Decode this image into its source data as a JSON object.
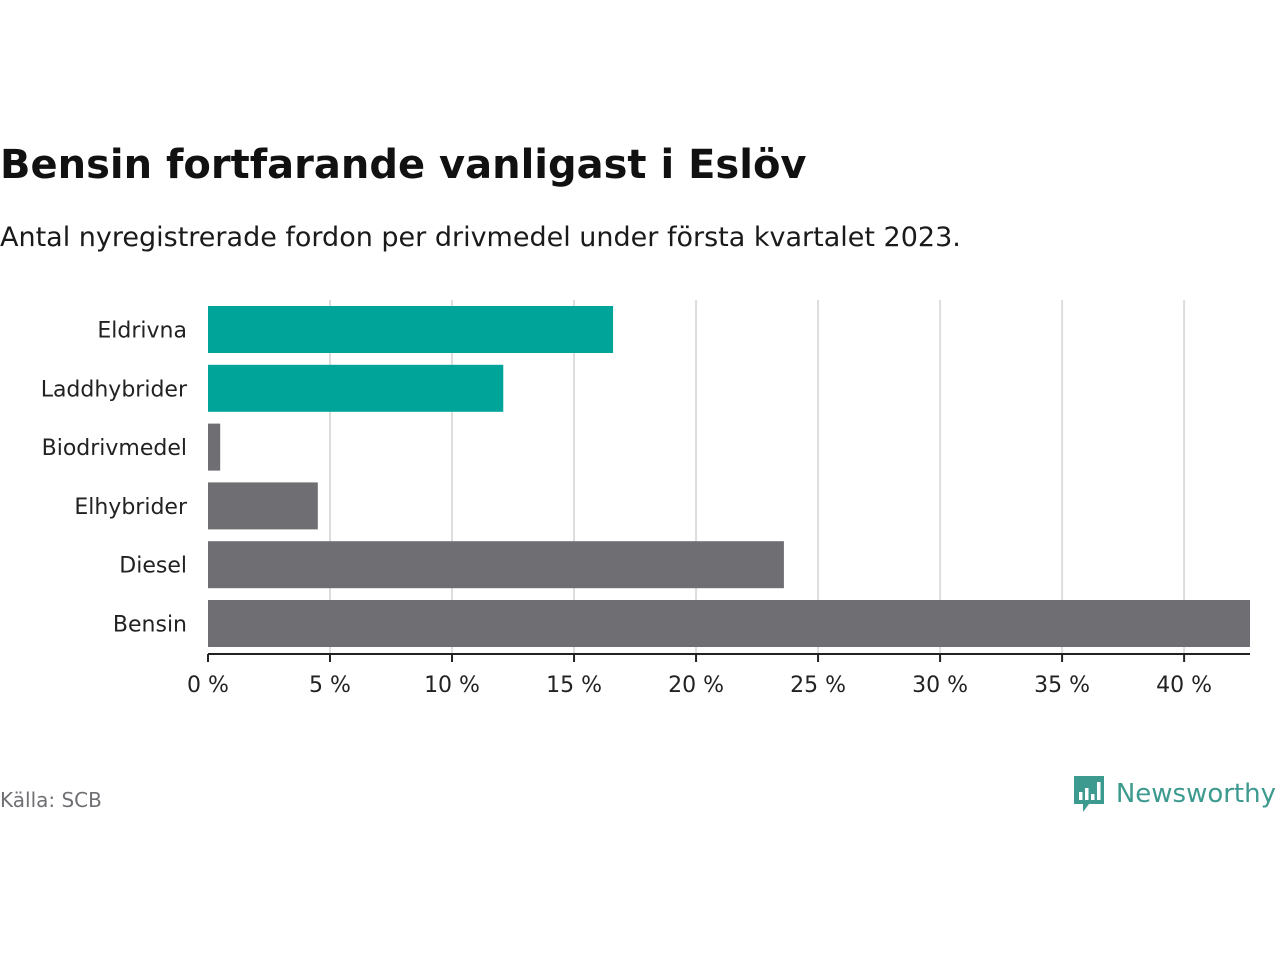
{
  "header": {
    "title": "Bensin fortfarande vanligast i Eslöv",
    "subtitle": "Antal nyregistrerade fordon per drivmedel under första kvartalet 2023."
  },
  "footer": {
    "source": "Källa: SCB",
    "brand": "Newsworthy",
    "brand_icon": "bar-chart-speech-bubble-icon"
  },
  "colors": {
    "highlight": "#00a499",
    "default": "#6f6e73",
    "grid": "#dddddd",
    "brand": "#3d9a8f"
  },
  "chart_data": {
    "type": "bar",
    "orientation": "horizontal",
    "categories": [
      "Eldrivna",
      "Laddhybrider",
      "Biodrivmedel",
      "Elhybrider",
      "Diesel",
      "Bensin"
    ],
    "values": [
      16.6,
      12.1,
      0.5,
      4.5,
      23.6,
      42.7
    ],
    "highlighted": [
      true,
      true,
      false,
      false,
      false,
      false
    ],
    "xlim": [
      0,
      42.7
    ],
    "xticks": [
      0,
      5,
      10,
      15,
      20,
      25,
      30,
      35,
      40
    ],
    "xtick_suffix": " %",
    "grid": true
  }
}
